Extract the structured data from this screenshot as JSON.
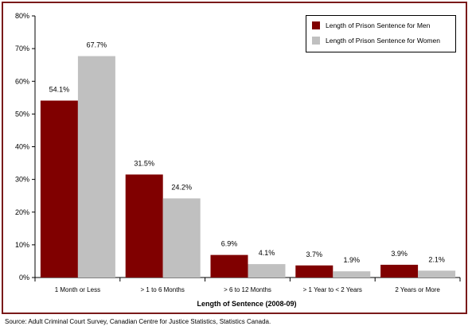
{
  "chart_data": {
    "type": "bar",
    "xlabel": "Length of Sentence (2008-09)",
    "ylabel": "",
    "ylim": [
      0,
      80
    ],
    "yticks": [
      "0%",
      "10%",
      "20%",
      "30%",
      "40%",
      "50%",
      "60%",
      "70%",
      "80%"
    ],
    "categories": [
      "1 Month or Less",
      "> 1 to 6 Months",
      "> 6 to 12 Months",
      "> 1 Year to < 2 Years",
      "2 Years or More"
    ],
    "series": [
      {
        "name": "Length of Prison Sentence for Men",
        "color": "#800000",
        "values": [
          54.1,
          31.5,
          6.9,
          3.7,
          3.9
        ],
        "labels": [
          "54.1%",
          "31.5%",
          "6.9%",
          "3.7%",
          "3.9%"
        ]
      },
      {
        "name": "Length of Prison Sentence for Women",
        "color": "#c0c0c0",
        "values": [
          67.7,
          24.2,
          4.1,
          1.9,
          2.1
        ],
        "labels": [
          "67.7%",
          "24.2%",
          "4.1%",
          "1.9%",
          "2.1%"
        ]
      }
    ],
    "legend": "top-right",
    "grid": false,
    "border_color": "#7a1a1a"
  },
  "source": "Source:  Adult Criminal Court Survey, Canadian Centre for Justice Statistics, Statistics Canada."
}
